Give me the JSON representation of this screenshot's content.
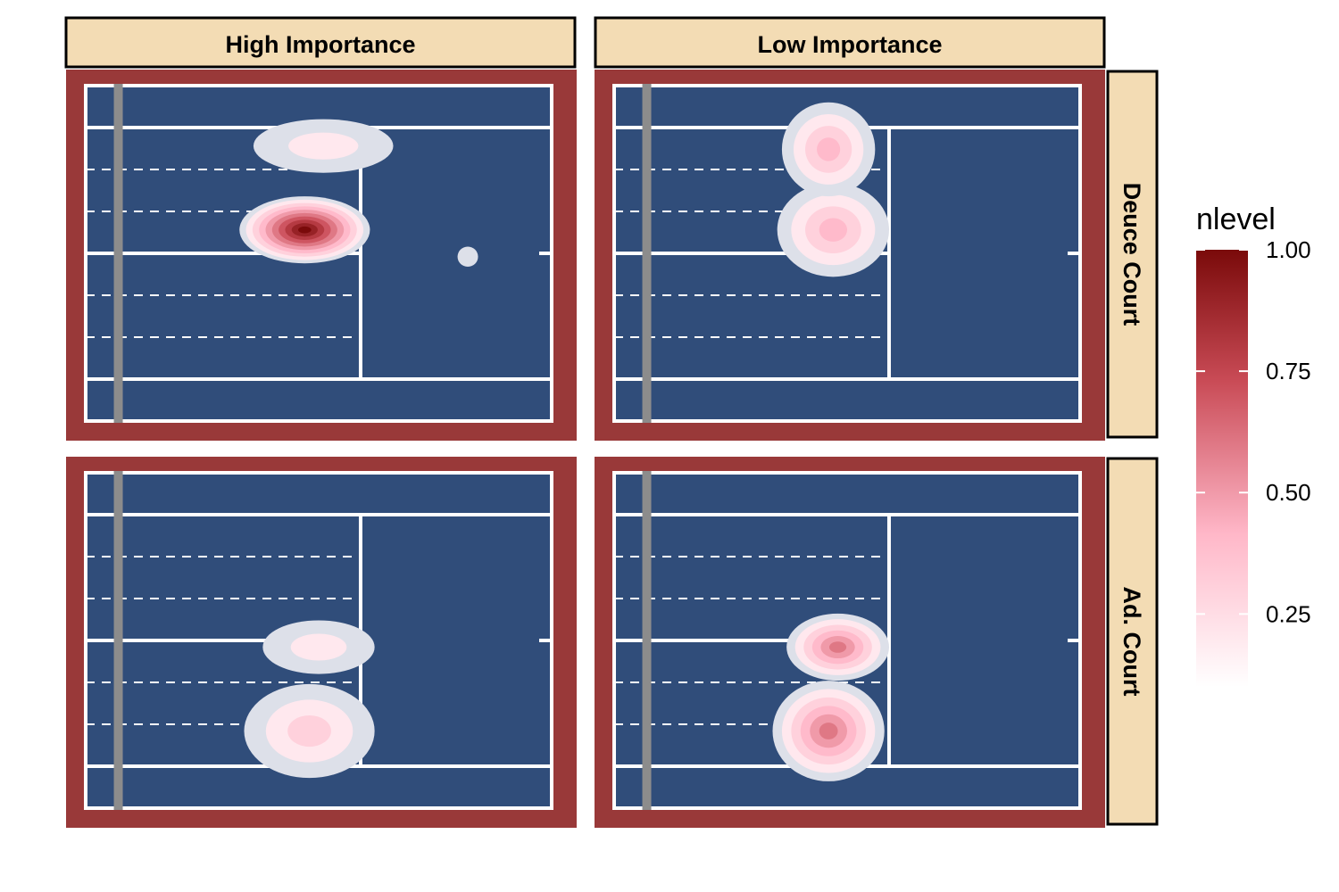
{
  "chart_data": {
    "type": "heatmap",
    "subtype": "2d-density-contour-faceted",
    "title": "",
    "xlabel": "",
    "ylabel": "",
    "facet_columns": [
      "High Importance",
      "Low Importance"
    ],
    "facet_rows": [
      "Deuce Court",
      "Ad. Court"
    ],
    "legend": {
      "title": "nlevel",
      "placement": "right",
      "range": [
        0.1,
        1.0
      ],
      "ticks": [
        "0.25",
        "0.50",
        "0.75",
        "1.00"
      ],
      "tick_values": [
        0.25,
        0.5,
        0.75,
        1.0
      ],
      "colors": [
        "#ffffff",
        "#ffb7c8",
        "#c94b56",
        "#7a0a0a"
      ]
    },
    "colors": {
      "court_fill": "#304d7a",
      "court_surround": "#993939",
      "strip_fill": "#f3dcb4",
      "court_lines": "#ffffff",
      "net": "#8c8c8c",
      "density_low": "#dde0e9"
    },
    "grid": false,
    "panels": [
      {
        "column": "High Importance",
        "row": "Deuce Court",
        "peak_nlevel": 1.0,
        "clusters": [
          {
            "region": "service box near center line",
            "peak_nlevel": 1.0
          },
          {
            "region": "service box near sideline",
            "peak_nlevel": 0.2
          },
          {
            "region": "isolated point beyond service line",
            "peak_nlevel": 0.1
          }
        ]
      },
      {
        "column": "Low Importance",
        "row": "Deuce Court",
        "peak_nlevel": 0.4,
        "clusters": [
          {
            "region": "service box near center line",
            "peak_nlevel": 0.4
          },
          {
            "region": "service box near sideline",
            "peak_nlevel": 0.4
          }
        ]
      },
      {
        "column": "High Importance",
        "row": "Ad. Court",
        "peak_nlevel": 0.3,
        "clusters": [
          {
            "region": "service box near center line",
            "peak_nlevel": 0.3
          },
          {
            "region": "service box near sideline",
            "peak_nlevel": 0.25
          }
        ]
      },
      {
        "column": "Low Importance",
        "row": "Ad. Court",
        "peak_nlevel": 0.6,
        "clusters": [
          {
            "region": "service box near center line",
            "peak_nlevel": 0.6
          },
          {
            "region": "service box near sideline",
            "peak_nlevel": 0.6
          }
        ]
      }
    ]
  }
}
